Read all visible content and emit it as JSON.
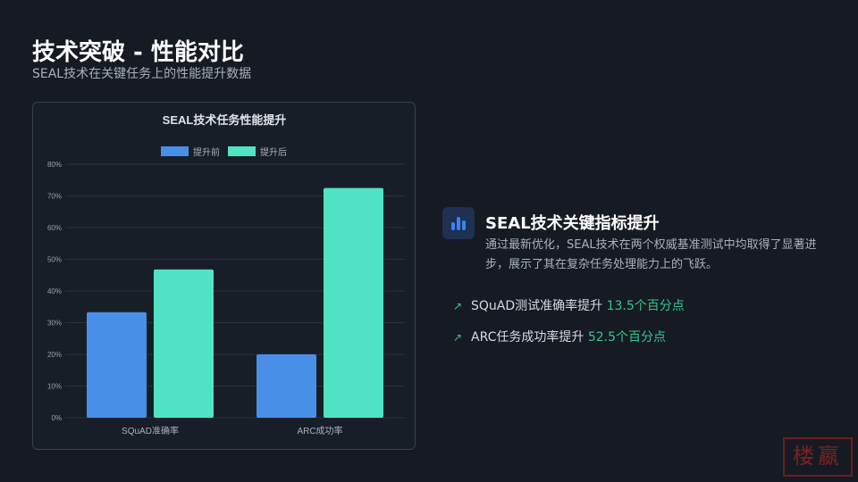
{
  "header": {
    "title": "技术突破 - 性能对比",
    "subtitle": "SEAL技术在关键任务上的性能提升数据"
  },
  "chart_data": {
    "type": "bar",
    "title": "SEAL技术任务性能提升",
    "categories": [
      "SQuAD准确率",
      "ARC成功率"
    ],
    "series": [
      {
        "name": "提升前",
        "values": [
          33.3,
          20.0
        ],
        "color": "#4a8fe7"
      },
      {
        "name": "提升后",
        "values": [
          46.8,
          72.5
        ],
        "color": "#4fe3c4"
      }
    ],
    "ylim": [
      0,
      80
    ],
    "yticks": [
      "0%",
      "10%",
      "20%",
      "30%",
      "40%",
      "50%",
      "60%",
      "70%",
      "80%"
    ],
    "legend": "top",
    "grid": true
  },
  "panel": {
    "icon": "bar-chart-icon",
    "title": "SEAL技术关键指标提升",
    "description": "通过最新优化，SEAL技术在两个权威基准测试中均取得了显著进步，展示了其在复杂任务处理能力上的飞跃。",
    "items": [
      {
        "icon": "trending-up-icon",
        "label": "SQuAD测试准确率提升 ",
        "highlight": "13.5个百分点"
      },
      {
        "icon": "trending-up-icon",
        "label": "ARC任务成功率提升 ",
        "highlight": "52.5个百分点"
      }
    ]
  },
  "colors": {
    "accent": "#34c58e",
    "background": "#161b23"
  },
  "seal": {
    "text": "楼嬴"
  }
}
